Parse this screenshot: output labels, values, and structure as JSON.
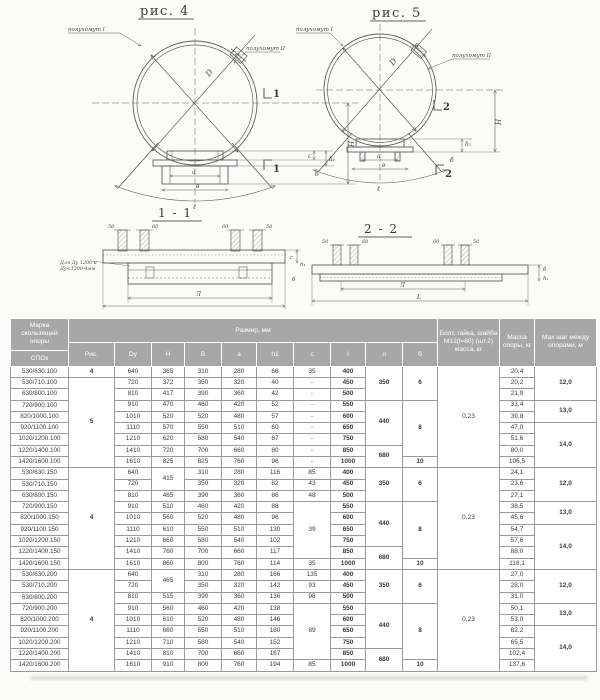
{
  "figures": {
    "fig4": {
      "title": "рис. 4",
      "half_clamp_1": "полухомут I",
      "half_clamp_2": "полухомут II",
      "section_no": "1",
      "dims": {
        "D": "D",
        "H": "Н",
        "c": "с",
        "h1": "h₁",
        "b": "б",
        "a": "а",
        "v": "в",
        "l": "ℓ"
      }
    },
    "fig5": {
      "title": "рис. 5",
      "half_clamp_1": "полухомут I",
      "half_clamp_2": "полухомут II",
      "section_no": "2",
      "dims": {
        "D": "D",
        "H": "Н",
        "h1": "h₁",
        "b": "б",
        "a": "а",
        "v": "в",
        "l": "ℓ"
      }
    },
    "section11": {
      "title": "1 - 1",
      "note_line1": "Для Ду 1200 и",
      "note_line2": "Ду<1200-4мм",
      "bolt_dim_left": "50",
      "bolt_dim_right": "60",
      "dims": {
        "c": "с",
        "h1": "h₁",
        "b": "б",
        "L": "Л"
      }
    },
    "section22": {
      "title": "2 - 2",
      "bolt_dim_left": "50",
      "bolt_dim_right": "60",
      "dims": {
        "b": "б",
        "h1": "h₁",
        "L": "Л",
        "Lfull": "L"
      }
    }
  },
  "table": {
    "mark_header": "Марка скользящей опоры",
    "mark_sub_header": "СПОк",
    "size_header": "Размер, мм",
    "bolt_header": "Болт, гайка, шайба М12(l=80) (шт.2) масса, кг",
    "mass_header": "Масса опоры, кг",
    "step_header": "Мах шаг между опорами, м",
    "col_headers": [
      "Рис.",
      "Dy",
      "Н",
      "В",
      "а",
      "h1",
      "с",
      "l",
      "л",
      "б"
    ],
    "rows": [
      [
        "530/630.100",
        {
          "t": "4",
          "b": 1
        },
        "640",
        "365",
        "310",
        "280",
        "66",
        "35",
        {
          "t": "400",
          "b": 1
        },
        {
          "t": "350",
          "b": 1,
          "r": 3
        },
        {
          "t": "6",
          "b": 1,
          "r": 3
        },
        {
          "t": "0,23",
          "r": 9
        },
        "20,4",
        {
          "t": "12,0",
          "b": 1,
          "r": 3
        }
      ],
      [
        "530/710.100",
        {
          "t": "5",
          "b": 1,
          "r": 8
        },
        "720",
        "372",
        "350",
        "320",
        "40",
        "-",
        {
          "t": "450",
          "b": 1
        },
        null,
        null,
        null,
        "20,2",
        null
      ],
      [
        "630/800.100",
        null,
        "810",
        "417",
        "390",
        "360",
        "42",
        "-",
        {
          "t": "500",
          "b": 1
        },
        null,
        null,
        null,
        "21,9",
        null
      ],
      [
        "720/900.100",
        null,
        "910",
        "470",
        "460",
        "420",
        "52",
        "-",
        {
          "t": "550",
          "b": 1
        },
        {
          "t": "440",
          "b": 1,
          "r": 4
        },
        {
          "t": "8",
          "b": 1,
          "r": 5
        },
        null,
        "33,4",
        {
          "t": "13,0",
          "b": 1,
          "r": 2
        }
      ],
      [
        "820/1000.100",
        null,
        "1010",
        "520",
        "520",
        "480",
        "57",
        "-",
        {
          "t": "600",
          "b": 1
        },
        null,
        null,
        null,
        "39,8",
        null
      ],
      [
        "920/1100.100",
        null,
        "1110",
        "570",
        "550",
        "510",
        "60",
        "-",
        {
          "t": "650",
          "b": 1
        },
        null,
        null,
        null,
        "47,0",
        {
          "t": "14,0",
          "b": 1,
          "r": 4
        }
      ],
      [
        "1020/1200.100",
        null,
        "1210",
        "620",
        "580",
        "540",
        "67",
        "-",
        {
          "t": "750",
          "b": 1
        },
        null,
        null,
        null,
        "51,6",
        null
      ],
      [
        "1220/1400.100",
        null,
        "1410",
        "720",
        "700",
        "660",
        "80",
        "-",
        {
          "t": "850",
          "b": 1
        },
        {
          "t": "680",
          "b": 1,
          "r": 2
        },
        null,
        null,
        "80,0",
        null
      ],
      [
        "1420/1600.100",
        null,
        "1610",
        "825",
        "825",
        "760",
        "96",
        "-",
        {
          "t": "1000",
          "b": 1
        },
        null,
        {
          "t": "10",
          "b": 1
        },
        null,
        "106,5",
        null
      ],
      [
        "530/630.150",
        {
          "t": "4",
          "b": 1,
          "r": 9
        },
        "640",
        {
          "t": "415",
          "r": 2
        },
        "310",
        "280",
        "116",
        "85",
        {
          "t": "400",
          "b": 1
        },
        {
          "t": "350",
          "b": 1,
          "r": 3
        },
        {
          "t": "6",
          "b": 1,
          "r": 3
        },
        {
          "t": "0,23",
          "r": 9
        },
        "24,1",
        {
          "t": "12,0",
          "b": 1,
          "r": 3
        }
      ],
      [
        "530/710.150",
        null,
        "720",
        null,
        "350",
        "320",
        "82",
        "43",
        {
          "t": "450",
          "b": 1
        },
        null,
        null,
        null,
        "23,6",
        null
      ],
      [
        "630/800.150",
        null,
        "810",
        "465",
        "390",
        "360",
        "86",
        "48",
        {
          "t": "500",
          "b": 1
        },
        null,
        null,
        null,
        "27,1",
        null
      ],
      [
        "720/900.150",
        null,
        "910",
        "510",
        "460",
        "420",
        "88",
        {
          "t": "39",
          "r": 5
        },
        {
          "t": "550",
          "b": 1
        },
        {
          "t": "440",
          "b": 1,
          "r": 4
        },
        {
          "t": "8",
          "b": 1,
          "r": 5
        },
        null,
        "38,5",
        {
          "t": "13,0",
          "b": 1,
          "r": 2
        }
      ],
      [
        "820/1000.150",
        null,
        "1010",
        "560",
        "520",
        "480",
        "96",
        null,
        {
          "t": "600",
          "b": 1
        },
        null,
        null,
        null,
        "45,6",
        null
      ],
      [
        "920/1100.150",
        null,
        "1110",
        "610",
        "550",
        "510",
        "130",
        null,
        {
          "t": "650",
          "b": 1
        },
        null,
        null,
        null,
        "54,7",
        {
          "t": "14,0",
          "b": 1,
          "r": 4
        }
      ],
      [
        "1020/1200.150",
        null,
        "1210",
        "660",
        "580",
        "540",
        "102",
        null,
        {
          "t": "750",
          "b": 1
        },
        null,
        null,
        null,
        "57,6",
        null
      ],
      [
        "1220/1400.150",
        null,
        "1410",
        "760",
        "700",
        "660",
        "117",
        null,
        {
          "t": "850",
          "b": 1
        },
        {
          "t": "680",
          "b": 1,
          "r": 2
        },
        null,
        null,
        "88,0",
        null
      ],
      [
        "1420/1600.150",
        null,
        "1610",
        "860",
        "800",
        "760",
        "114",
        "35",
        {
          "t": "1000",
          "b": 1
        },
        null,
        {
          "t": "10",
          "b": 1
        },
        null,
        "118,1",
        null
      ],
      [
        "530/630.200",
        {
          "t": "4",
          "b": 1,
          "r": 9
        },
        "640",
        {
          "t": "465",
          "r": 2
        },
        "310",
        "280",
        "166",
        "135",
        {
          "t": "400",
          "b": 1
        },
        {
          "t": "350",
          "b": 1,
          "r": 3
        },
        {
          "t": "6",
          "b": 1,
          "r": 3
        },
        {
          "t": "0,23",
          "r": 9
        },
        "27,0",
        {
          "t": "12,0",
          "b": 1,
          "r": 3
        }
      ],
      [
        "530/710.200",
        null,
        "720",
        null,
        "350",
        "320",
        "142",
        "93",
        {
          "t": "450",
          "b": 1
        },
        null,
        null,
        null,
        "28,0",
        null
      ],
      [
        "630/800.200",
        null,
        "810",
        "515",
        "390",
        "360",
        "136",
        "98",
        {
          "t": "500",
          "b": 1
        },
        null,
        null,
        null,
        "31,0",
        null
      ],
      [
        "720/900.200",
        null,
        "910",
        "560",
        "460",
        "420",
        "138",
        {
          "t": "89",
          "r": 5
        },
        {
          "t": "550",
          "b": 1
        },
        {
          "t": "440",
          "b": 1,
          "r": 4
        },
        {
          "t": "8",
          "b": 1,
          "r": 5
        },
        null,
        "50,1",
        {
          "t": "13,0",
          "b": 1,
          "r": 2
        }
      ],
      [
        "820/1000.200",
        null,
        "1010",
        "610",
        "520",
        "480",
        "146",
        null,
        {
          "t": "600",
          "b": 1
        },
        null,
        null,
        null,
        "53,0",
        null
      ],
      [
        "920/1100.200",
        null,
        "1110",
        "660",
        "550",
        "510",
        "180",
        null,
        {
          "t": "650",
          "b": 1
        },
        null,
        null,
        null,
        "62,2",
        {
          "t": "14,0",
          "b": 1,
          "r": 4
        }
      ],
      [
        "1020/1200.200",
        null,
        "1210",
        "710",
        "580",
        "540",
        "152",
        null,
        {
          "t": "750",
          "b": 1
        },
        null,
        null,
        null,
        "65,5",
        null
      ],
      [
        "1220/1400.200",
        null,
        "1410",
        "810",
        "700",
        "660",
        "167",
        null,
        {
          "t": "850",
          "b": 1
        },
        {
          "t": "680",
          "b": 1,
          "r": 2
        },
        null,
        null,
        "102,4",
        null
      ],
      [
        "1420/1600.200",
        null,
        "1610",
        "910",
        "800",
        "760",
        "194",
        "85",
        {
          "t": "1000",
          "b": 1
        },
        null,
        {
          "t": "10",
          "b": 1
        },
        null,
        "137,6",
        null
      ]
    ]
  },
  "colors": {
    "header_bg": "#a7a7a7",
    "header_text": "#ffffff",
    "grid": "#9a9a9a",
    "ink": "#5f5f5f"
  }
}
